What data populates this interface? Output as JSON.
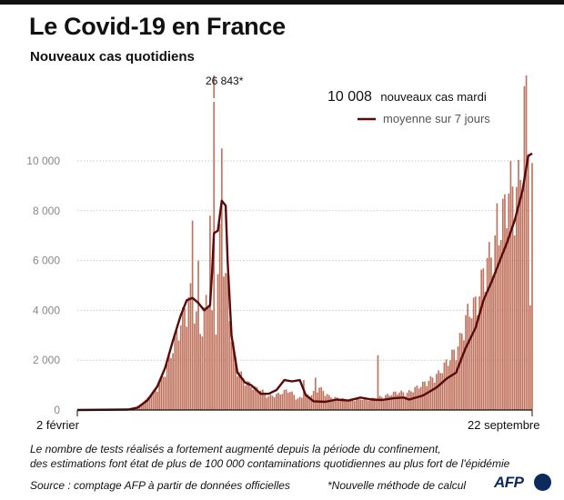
{
  "title": "Le Covid-19 en France",
  "subtitle": "Nouveaux cas quotidiens",
  "peak_label": "26 843*",
  "callout_value": "10 008",
  "callout_text": "nouveaux cas mardi",
  "note_line1": "Le nombre de tests réalisés a fortement augmenté depuis la période du confinement,",
  "note_line2": "des estimations font état de plus de 100 000 contaminations quotidiennes au plus fort de l'épidémie",
  "source": "Source : comptage AFP à partir de données officielles",
  "method_note": "*Nouvelle méthode de calcul",
  "logo_text": "AFP",
  "colors": {
    "bar": "#c0735e",
    "line": "#5a0a0a",
    "grid": "#c8c8c8",
    "logo": "#0d2a5c"
  },
  "chart_data": {
    "type": "bar",
    "x_start": "2020-02-02",
    "x_end": "2020-09-22",
    "xticks": [
      "2 février",
      "22 septembre"
    ],
    "ylim": [
      0,
      10000
    ],
    "yticks": [
      0,
      2000,
      4000,
      6000,
      8000,
      10000
    ],
    "ytick_labels": [
      "0",
      "2 000",
      "4 000",
      "6 000",
      "8 000",
      "10 000"
    ],
    "grid": true,
    "legend": "top-right",
    "clipped_peak": {
      "date": "2020-04-12",
      "value": 26843,
      "label": "26 843*"
    },
    "series": [
      {
        "kind": "bar",
        "anchors": [
          [
            "2020-02-02",
            0
          ],
          [
            "2020-02-20",
            10
          ],
          [
            "2020-03-01",
            80
          ],
          [
            "2020-03-06",
            250
          ],
          [
            "2020-03-10",
            600
          ],
          [
            "2020-03-14",
            1000
          ],
          [
            "2020-03-17",
            1500
          ],
          [
            "2020-03-20",
            2200
          ],
          [
            "2020-03-24",
            3300
          ],
          [
            "2020-03-28",
            4400
          ],
          [
            "2020-03-31",
            5100
          ],
          [
            "2020-04-03",
            4100
          ],
          [
            "2020-04-06",
            3500
          ],
          [
            "2020-04-09",
            5500
          ],
          [
            "2020-04-11",
            4000
          ],
          [
            "2020-04-13",
            4100
          ],
          [
            "2020-04-15",
            7500
          ],
          [
            "2020-04-17",
            6700
          ],
          [
            "2020-04-19",
            5600
          ],
          [
            "2020-04-21",
            3200
          ],
          [
            "2020-04-24",
            1800
          ],
          [
            "2020-04-28",
            1300
          ],
          [
            "2020-05-02",
            1000
          ],
          [
            "2020-05-06",
            900
          ],
          [
            "2020-05-10",
            600
          ],
          [
            "2020-05-15",
            700
          ],
          [
            "2020-05-20",
            900
          ],
          [
            "2020-05-25",
            500
          ],
          [
            "2020-06-01",
            700
          ],
          [
            "2020-06-05",
            1000
          ],
          [
            "2020-06-10",
            600
          ],
          [
            "2020-06-15",
            500
          ],
          [
            "2020-06-20",
            450
          ],
          [
            "2020-06-25",
            500
          ],
          [
            "2020-07-01",
            480
          ],
          [
            "2020-07-08",
            600
          ],
          [
            "2020-07-15",
            800
          ],
          [
            "2020-07-20",
            750
          ],
          [
            "2020-07-25",
            1000
          ],
          [
            "2020-07-31",
            1300
          ],
          [
            "2020-08-05",
            1600
          ],
          [
            "2020-08-10",
            2200
          ],
          [
            "2020-08-15",
            2800
          ],
          [
            "2020-08-20",
            4300
          ],
          [
            "2020-08-25",
            4800
          ],
          [
            "2020-08-29",
            6500
          ],
          [
            "2020-09-02",
            7000
          ],
          [
            "2020-09-06",
            8200
          ],
          [
            "2020-09-10",
            9800
          ],
          [
            "2020-09-14",
            9600
          ],
          [
            "2020-09-17",
            11000
          ],
          [
            "2020-09-20",
            12500
          ],
          [
            "2020-09-22",
            10008
          ]
        ],
        "spikes": [
          [
            "2020-04-01",
            7600
          ],
          [
            "2020-04-04",
            6000
          ],
          [
            "2020-04-10",
            7800
          ],
          [
            "2020-04-16",
            10500
          ],
          [
            "2020-04-18",
            5500
          ],
          [
            "2020-05-28",
            1200
          ],
          [
            "2020-06-03",
            1300
          ],
          [
            "2020-07-05",
            2200
          ],
          [
            "2020-09-04",
            8300
          ],
          [
            "2020-09-11",
            10000
          ],
          [
            "2020-09-18",
            13000
          ],
          [
            "2020-09-19",
            13500
          ],
          [
            "2020-09-21",
            4200
          ]
        ]
      },
      {
        "kind": "line",
        "name": "moyenne sur 7 jours",
        "points": [
          [
            "2020-02-02",
            0
          ],
          [
            "2020-02-28",
            20
          ],
          [
            "2020-03-04",
            100
          ],
          [
            "2020-03-09",
            400
          ],
          [
            "2020-03-14",
            950
          ],
          [
            "2020-03-18",
            1700
          ],
          [
            "2020-03-22",
            2800
          ],
          [
            "2020-03-26",
            3800
          ],
          [
            "2020-03-29",
            4400
          ],
          [
            "2020-04-01",
            4500
          ],
          [
            "2020-04-04",
            4300
          ],
          [
            "2020-04-07",
            4000
          ],
          [
            "2020-04-10",
            4200
          ],
          [
            "2020-04-11",
            5500
          ],
          [
            "2020-04-12",
            7100
          ],
          [
            "2020-04-14",
            7200
          ],
          [
            "2020-04-16",
            8400
          ],
          [
            "2020-04-18",
            8200
          ],
          [
            "2020-04-19",
            6000
          ],
          [
            "2020-04-21",
            3000
          ],
          [
            "2020-04-24",
            1500
          ],
          [
            "2020-04-28",
            1100
          ],
          [
            "2020-05-01",
            1000
          ],
          [
            "2020-05-06",
            650
          ],
          [
            "2020-05-10",
            650
          ],
          [
            "2020-05-14",
            800
          ],
          [
            "2020-05-18",
            1200
          ],
          [
            "2020-05-22",
            1150
          ],
          [
            "2020-05-26",
            1200
          ],
          [
            "2020-05-29",
            600
          ],
          [
            "2020-06-02",
            350
          ],
          [
            "2020-06-08",
            330
          ],
          [
            "2020-06-14",
            420
          ],
          [
            "2020-06-20",
            380
          ],
          [
            "2020-06-26",
            500
          ],
          [
            "2020-07-02",
            420
          ],
          [
            "2020-07-07",
            400
          ],
          [
            "2020-07-13",
            470
          ],
          [
            "2020-07-18",
            500
          ],
          [
            "2020-07-21",
            420
          ],
          [
            "2020-07-28",
            580
          ],
          [
            "2020-08-04",
            900
          ],
          [
            "2020-08-09",
            1250
          ],
          [
            "2020-08-14",
            1500
          ],
          [
            "2020-08-19",
            2500
          ],
          [
            "2020-08-24",
            3300
          ],
          [
            "2020-08-28",
            4400
          ],
          [
            "2020-09-01",
            5100
          ],
          [
            "2020-09-05",
            5900
          ],
          [
            "2020-09-09",
            6700
          ],
          [
            "2020-09-13",
            7600
          ],
          [
            "2020-09-17",
            8800
          ],
          [
            "2020-09-20",
            10200
          ],
          [
            "2020-09-22",
            10300
          ]
        ]
      }
    ]
  }
}
